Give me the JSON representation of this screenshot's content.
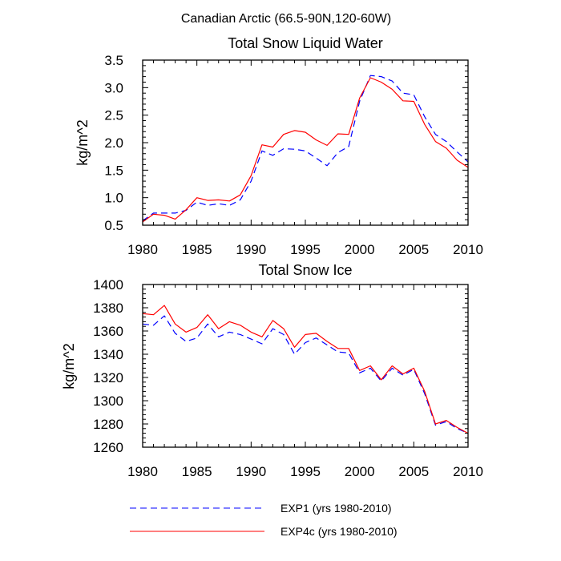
{
  "figure_title": "Canadian Arctic (66.5-90N,120-60W)",
  "legend": [
    {
      "label": "EXP1 (yrs 1980-2010)",
      "color": "#0000ff",
      "style": "dashed"
    },
    {
      "label": "EXP4c (yrs 1980-2010)",
      "color": "#ff0000",
      "style": "solid"
    }
  ],
  "chart_data": [
    {
      "type": "line",
      "title": "Total Snow Liquid Water",
      "xlabel": "",
      "ylabel": "kg/m^2",
      "xlim": [
        1980,
        2010
      ],
      "ylim": [
        0.5,
        3.5
      ],
      "xticks": [
        1980,
        1985,
        1990,
        1995,
        2000,
        2005,
        2010
      ],
      "yticks": [
        0.5,
        1.0,
        1.5,
        2.0,
        2.5,
        3.0,
        3.5
      ],
      "ytick_labels": [
        "0.5",
        "1.0",
        "1.5",
        "2.0",
        "2.5",
        "3.0",
        "3.5"
      ],
      "x": [
        1980,
        1981,
        1982,
        1983,
        1984,
        1985,
        1986,
        1987,
        1988,
        1989,
        1990,
        1991,
        1992,
        1993,
        1994,
        1995,
        1996,
        1997,
        1998,
        1999,
        2000,
        2001,
        2002,
        2003,
        2004,
        2005,
        2006,
        2007,
        2008,
        2009,
        2010
      ],
      "series": [
        {
          "name": "EXP1 (yrs 1980-2010)",
          "color": "#0000ff",
          "style": "dashed",
          "values": [
            0.58,
            0.72,
            0.72,
            0.72,
            0.77,
            0.92,
            0.86,
            0.89,
            0.86,
            0.96,
            1.3,
            1.85,
            1.77,
            1.89,
            1.88,
            1.85,
            1.72,
            1.58,
            1.82,
            1.93,
            2.75,
            3.22,
            3.2,
            3.12,
            2.9,
            2.87,
            2.47,
            2.15,
            2.02,
            1.83,
            1.65
          ]
        },
        {
          "name": "EXP4c (yrs 1980-2010)",
          "color": "#ff0000",
          "style": "solid",
          "values": [
            0.56,
            0.7,
            0.68,
            0.61,
            0.78,
            1.0,
            0.95,
            0.96,
            0.94,
            1.05,
            1.4,
            1.96,
            1.92,
            2.15,
            2.22,
            2.19,
            2.05,
            1.95,
            2.16,
            2.15,
            2.81,
            3.18,
            3.1,
            2.97,
            2.76,
            2.75,
            2.33,
            2.02,
            1.9,
            1.68,
            1.55
          ]
        }
      ]
    },
    {
      "type": "line",
      "title": "Total Snow Ice",
      "xlabel": "",
      "ylabel": "kg/m^2",
      "xlim": [
        1980,
        2010
      ],
      "ylim": [
        1260,
        1400
      ],
      "xticks": [
        1980,
        1985,
        1990,
        1995,
        2000,
        2005,
        2010
      ],
      "yticks": [
        1260,
        1280,
        1300,
        1320,
        1340,
        1360,
        1380,
        1400
      ],
      "ytick_labels": [
        "1260",
        "1280",
        "1300",
        "1320",
        "1340",
        "1360",
        "1380",
        "1400"
      ],
      "x": [
        1980,
        1981,
        1982,
        1983,
        1984,
        1985,
        1986,
        1987,
        1988,
        1989,
        1990,
        1991,
        1992,
        1993,
        1994,
        1995,
        1996,
        1997,
        1998,
        1999,
        2000,
        2001,
        2002,
        2003,
        2004,
        2005,
        2006,
        2007,
        2008,
        2009,
        2010
      ],
      "series": [
        {
          "name": "EXP1 (yrs 1980-2010)",
          "color": "#0000ff",
          "style": "dashed",
          "values": [
            1366,
            1365,
            1373,
            1358,
            1351,
            1354,
            1366,
            1355,
            1359,
            1357,
            1353,
            1349,
            1362,
            1357,
            1340,
            1350,
            1354,
            1348,
            1342,
            1341,
            1324,
            1328,
            1317,
            1328,
            1322,
            1327,
            1306,
            1279,
            1282,
            1276,
            1272
          ]
        },
        {
          "name": "EXP4c (yrs 1980-2010)",
          "color": "#ff0000",
          "style": "solid",
          "values": [
            1375,
            1374,
            1382,
            1366,
            1359,
            1363,
            1374,
            1362,
            1368,
            1365,
            1359,
            1355,
            1369,
            1362,
            1346,
            1357,
            1358,
            1351,
            1345,
            1345,
            1326,
            1330,
            1318,
            1330,
            1323,
            1328,
            1308,
            1280,
            1283,
            1277,
            1272
          ]
        }
      ]
    }
  ]
}
